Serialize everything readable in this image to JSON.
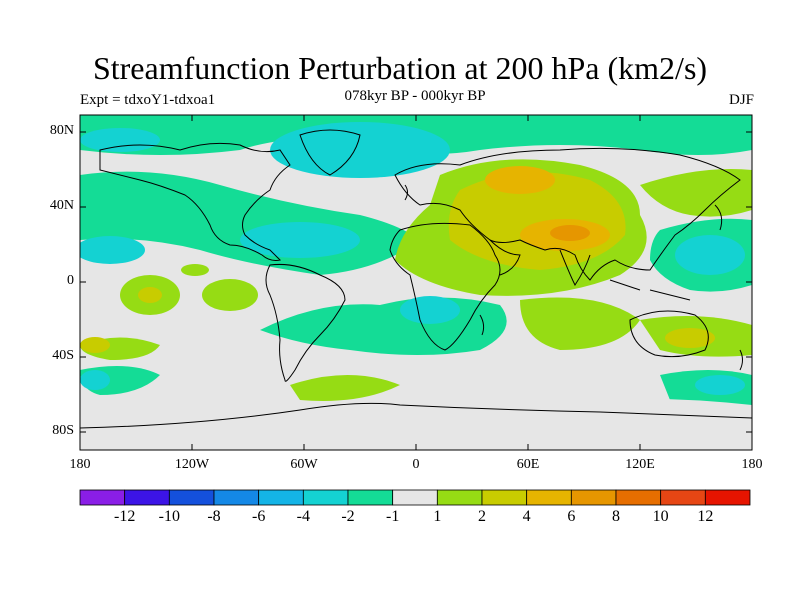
{
  "header": {
    "title": "Streamfunction Perturbation at 200 hPa (km2/s)",
    "experiment": "Expt = tdxoY1-tdxoa1",
    "period": "078kyr BP - 000kyr BP",
    "season": "DJF"
  },
  "axes": {
    "lat_labels": [
      "80N",
      "40N",
      "0",
      "40S",
      "80S"
    ],
    "lon_labels": [
      "180",
      "120W",
      "60W",
      "0",
      "60E",
      "120E",
      "180"
    ]
  },
  "colorbar": {
    "colors": [
      "#8a1ee6",
      "#3c14e6",
      "#1450dc",
      "#1488e6",
      "#14b4e6",
      "#14d2d2",
      "#14dc96",
      "#e6e6e6",
      "#96dc14",
      "#c8cc00",
      "#e6b400",
      "#e69600",
      "#e66e00",
      "#e64614",
      "#e61400"
    ],
    "labels": [
      "-12",
      "-10",
      "-8",
      "-6",
      "-4",
      "-2",
      "-1",
      "1",
      "2",
      "4",
      "6",
      "8",
      "10",
      "12"
    ]
  }
}
